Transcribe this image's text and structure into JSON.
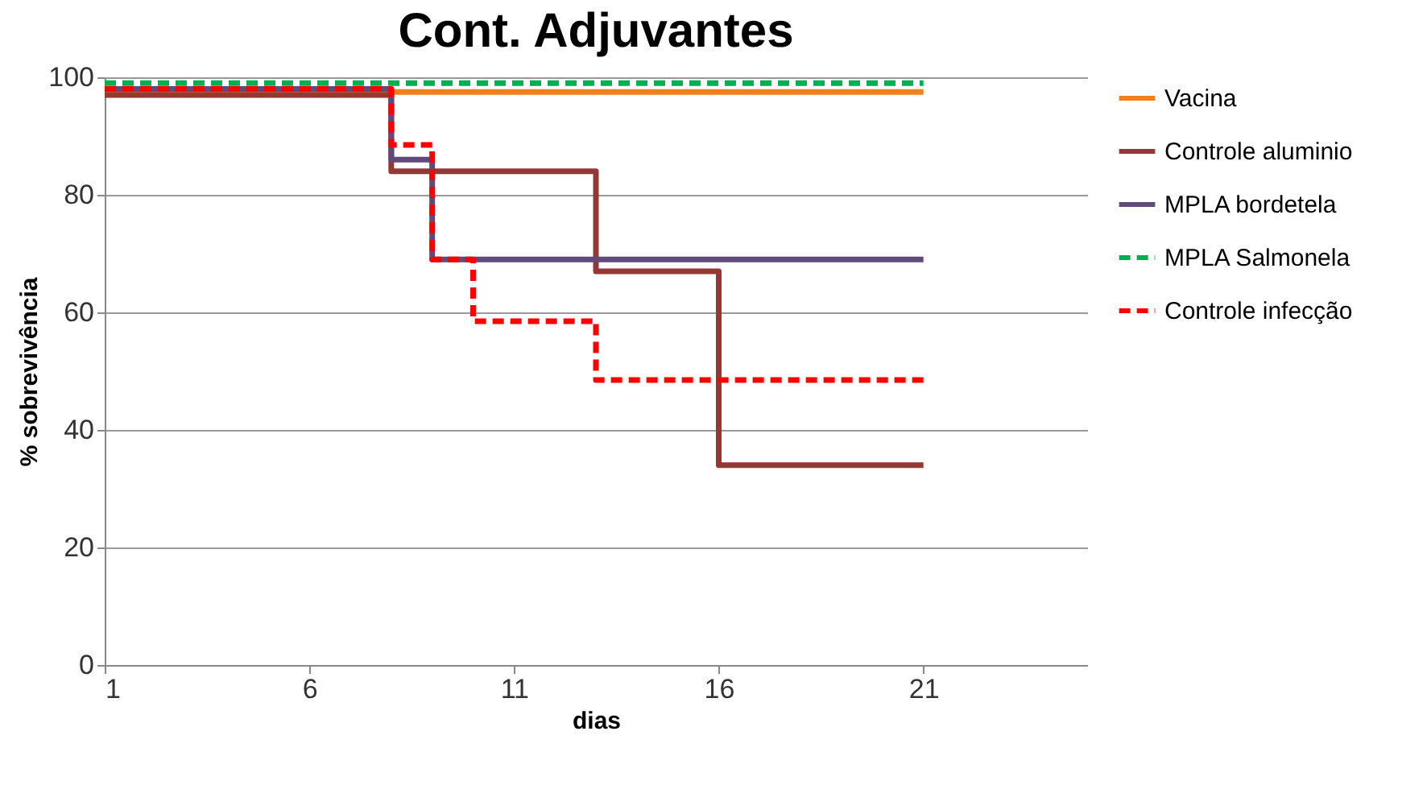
{
  "chart_data": {
    "type": "step",
    "title": "Cont. Adjuvantes",
    "xlabel": "dias",
    "ylabel": "% sobrevivência",
    "xlim": [
      1,
      25
    ],
    "xticks": [
      1,
      6,
      11,
      16,
      21
    ],
    "ylim": [
      0,
      100
    ],
    "yticks": [
      0,
      20,
      40,
      60,
      80,
      100
    ],
    "grid": "y",
    "legend": "right",
    "marker": "none",
    "series": [
      {
        "name": "Vacina",
        "color": "#f07f1e",
        "line_style": "solid",
        "x": [
          1,
          21
        ],
        "values": [
          97.5,
          97.5
        ]
      },
      {
        "name": "Controle aluminio",
        "color": "#953735",
        "line_style": "solid",
        "x": [
          1,
          8,
          13,
          16,
          21
        ],
        "values": [
          97,
          84,
          67,
          34,
          34
        ]
      },
      {
        "name": "MPLA bordetela",
        "color": "#604a7b",
        "line_style": "solid",
        "x": [
          1,
          8,
          9,
          21
        ],
        "values": [
          98,
          86,
          69,
          69
        ]
      },
      {
        "name": "MPLA Salmonela",
        "color": "#00b050",
        "line_style": "dashed",
        "x": [
          1,
          21
        ],
        "values": [
          99,
          99
        ]
      },
      {
        "name": "Controle infecção",
        "color": "#ff0000",
        "line_style": "dashed",
        "x": [
          1,
          8,
          9,
          10,
          13,
          21
        ],
        "values": [
          98,
          88.5,
          69,
          58.5,
          48.5,
          48.5
        ]
      }
    ]
  }
}
